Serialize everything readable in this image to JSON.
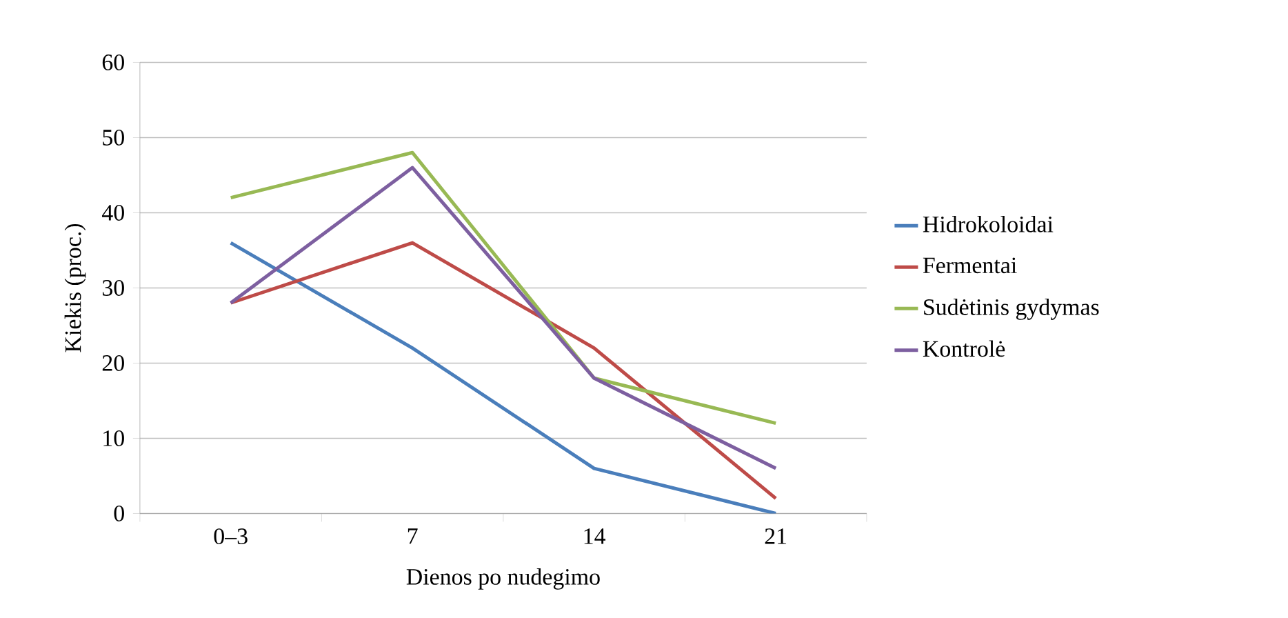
{
  "chart_data": {
    "type": "line",
    "xlabel": "Dienos po nudegimo",
    "ylabel": "Kiekis (proc.)",
    "categories": [
      "0–3",
      "7",
      "14",
      "21"
    ],
    "series": [
      {
        "name": "Hidrokoloidai",
        "color": "#4a7ebb",
        "values": [
          36,
          22,
          6,
          0
        ]
      },
      {
        "name": "Fermentai",
        "color": "#be4b48",
        "values": [
          28,
          36,
          22,
          2
        ]
      },
      {
        "name": "Sudėtinis gydymas",
        "color": "#98b954",
        "values": [
          42,
          48,
          18,
          12
        ]
      },
      {
        "name": "Kontrolė",
        "color": "#7d5fa0",
        "values": [
          28,
          46,
          18,
          6
        ]
      }
    ],
    "ylim": [
      0,
      60
    ],
    "yticks": [
      0,
      10,
      20,
      30,
      40,
      50,
      60
    ],
    "grid": "y",
    "legend": "right",
    "marker": "none",
    "line_style": "solid"
  }
}
